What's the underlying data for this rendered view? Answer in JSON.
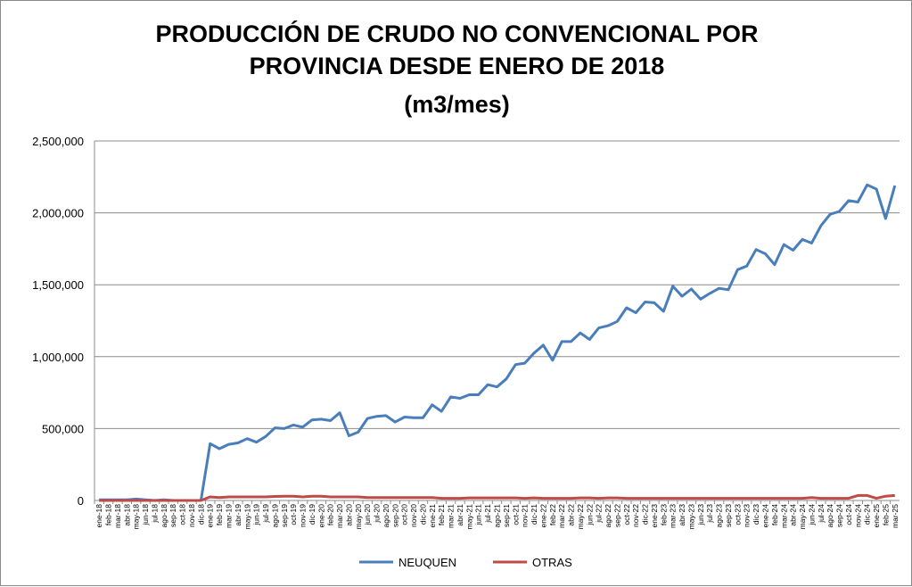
{
  "chart_data": {
    "type": "line",
    "title": [
      "PRODUCCIÓN DE CRUDO NO CONVENCIONAL POR",
      "PROVINCIA DESDE ENERO DE 2018",
      "(m3/mes)"
    ],
    "xlabel": "",
    "ylabel": "",
    "ylim": [
      0,
      2500000
    ],
    "yticks": [
      0,
      500000,
      1000000,
      1500000,
      2000000,
      2500000
    ],
    "ytick_labels": [
      "0",
      "500,000",
      "1,000,000",
      "1,500,000",
      "2,000,000",
      "2,500,000"
    ],
    "grid": true,
    "legend_position": "bottom",
    "categories": [
      "ene-18",
      "feb-18",
      "mar-18",
      "abr-18",
      "may-18",
      "jun-18",
      "jul-18",
      "ago-18",
      "sep-18",
      "oct-18",
      "nov-18",
      "dic-18",
      "ene-19",
      "feb-19",
      "mar-19",
      "abr-19",
      "may-19",
      "jun-19",
      "jul-19",
      "ago-19",
      "sep-19",
      "oct-19",
      "nov-19",
      "dic-19",
      "ene-20",
      "feb-20",
      "mar-20",
      "abr-20",
      "may-20",
      "jun-20",
      "jul-20",
      "ago-20",
      "sep-20",
      "oct-20",
      "nov-20",
      "dic-20",
      "ene-21",
      "feb-21",
      "mar-21",
      "abr-21",
      "may-21",
      "jun-21",
      "jul-21",
      "ago-21",
      "sep-21",
      "oct-21",
      "nov-21",
      "dic-21",
      "ene-22",
      "feb-22",
      "mar-22",
      "abr-22",
      "may-22",
      "jun-22",
      "jul-22",
      "ago-22",
      "sep-22",
      "oct-22",
      "nov-22",
      "dic-22",
      "ene-23",
      "feb-23",
      "mar-23",
      "abr-23",
      "may-23",
      "jun-23",
      "jul-23",
      "ago-23",
      "sep-23",
      "oct-23",
      "nov-23",
      "dic-23",
      "ene-24",
      "feb-24",
      "mar-24",
      "abr-24",
      "may-24",
      "jun-24",
      "jul-24",
      "ago-24",
      "sep-24",
      "oct-24",
      "nov-24",
      "dic-24",
      "ene-25",
      "feb-25",
      "mar-25"
    ],
    "series": [
      {
        "name": "NEUQUEN",
        "color": "#4a7ebb",
        "values": [
          5000,
          5000,
          5000,
          5000,
          10000,
          5000,
          0,
          5000,
          0,
          0,
          0,
          0,
          395000,
          360000,
          390000,
          400000,
          430000,
          405000,
          445000,
          505000,
          500000,
          525000,
          510000,
          560000,
          565000,
          555000,
          610000,
          450000,
          475000,
          570000,
          585000,
          590000,
          545000,
          580000,
          575000,
          575000,
          665000,
          620000,
          720000,
          710000,
          735000,
          735000,
          805000,
          790000,
          845000,
          945000,
          955000,
          1025000,
          1080000,
          975000,
          1105000,
          1105000,
          1165000,
          1120000,
          1200000,
          1215000,
          1245000,
          1340000,
          1305000,
          1380000,
          1375000,
          1315000,
          1490000,
          1420000,
          1470000,
          1400000,
          1440000,
          1475000,
          1465000,
          1605000,
          1630000,
          1745000,
          1715000,
          1640000,
          1780000,
          1740000,
          1815000,
          1790000,
          1910000,
          1990000,
          2010000,
          2085000,
          2075000,
          2195000,
          2165000,
          1960000,
          2190000
        ]
      },
      {
        "name": "OTRAS",
        "color": "#be4b48",
        "values": [
          0,
          0,
          0,
          0,
          0,
          0,
          0,
          0,
          0,
          0,
          0,
          0,
          25000,
          20000,
          25000,
          25000,
          25000,
          25000,
          25000,
          28000,
          30000,
          30000,
          25000,
          30000,
          30000,
          25000,
          25000,
          25000,
          25000,
          20000,
          20000,
          20000,
          20000,
          20000,
          20000,
          20000,
          20000,
          15000,
          15000,
          15000,
          18000,
          18000,
          18000,
          18000,
          18000,
          18000,
          15000,
          18000,
          15000,
          15000,
          15000,
          15000,
          18000,
          18000,
          15000,
          18000,
          18000,
          15000,
          15000,
          15000,
          15000,
          15000,
          15000,
          15000,
          15000,
          15000,
          15000,
          15000,
          15000,
          15000,
          15000,
          15000,
          15000,
          15000,
          15000,
          15000,
          15000,
          20000,
          15000,
          15000,
          15000,
          15000,
          35000,
          35000,
          15000,
          30000,
          35000
        ]
      }
    ]
  }
}
